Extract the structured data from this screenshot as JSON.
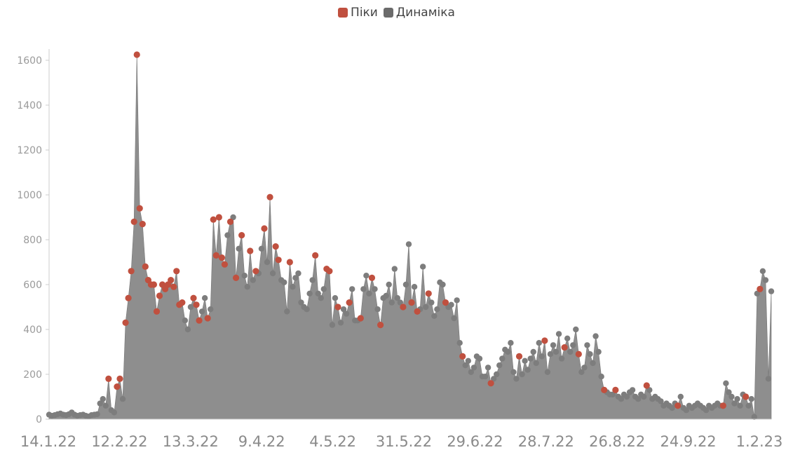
{
  "legend": {
    "peaks_label": "Піки",
    "dynamics_label": "Динаміка"
  },
  "colors": {
    "area": "#8e8e8e",
    "dot": "#7d7d7d",
    "peak": "#c0503f",
    "axis": "#cccccc"
  },
  "chart_data": {
    "type": "area",
    "title": "",
    "xlabel": "",
    "ylabel": "",
    "ylim": [
      0,
      1650
    ],
    "y_ticks": [
      0,
      200,
      400,
      600,
      800,
      1000,
      1200,
      1400,
      1600
    ],
    "x_tick_labels": [
      "14.1.22",
      "12.2.22",
      "13.3.22",
      "9.4.22",
      "4.5.22",
      "31.5.22",
      "29.6.22",
      "28.7.22",
      "26.8.22",
      "24.9.22",
      "1.2.23"
    ],
    "legend_position": "top-center",
    "grid": false,
    "series": [
      {
        "name": "Динаміка",
        "values": [
          20,
          15,
          18,
          22,
          25,
          20,
          18,
          22,
          30,
          20,
          15,
          18,
          20,
          15,
          12,
          18,
          20,
          22,
          70,
          90,
          60,
          180,
          40,
          30,
          145,
          180,
          90,
          430,
          540,
          660,
          880,
          1625,
          940,
          870,
          680,
          620,
          600,
          600,
          480,
          550,
          600,
          580,
          600,
          620,
          590,
          660,
          510,
          520,
          440,
          400,
          500,
          540,
          510,
          440,
          480,
          540,
          450,
          490,
          890,
          730,
          900,
          720,
          690,
          820,
          880,
          900,
          630,
          760,
          820,
          640,
          590,
          750,
          620,
          660,
          650,
          760,
          850,
          700,
          990,
          650,
          770,
          710,
          620,
          610,
          480,
          700,
          590,
          630,
          650,
          520,
          500,
          490,
          560,
          620,
          730,
          560,
          540,
          580,
          670,
          660,
          420,
          540,
          500,
          430,
          490,
          470,
          520,
          580,
          440,
          440,
          450,
          580,
          640,
          560,
          630,
          580,
          490,
          420,
          540,
          550,
          600,
          520,
          670,
          540,
          520,
          500,
          600,
          780,
          520,
          590,
          480,
          490,
          680,
          500,
          560,
          520,
          460,
          490,
          610,
          600,
          520,
          500,
          510,
          450,
          530,
          340,
          280,
          240,
          260,
          210,
          230,
          280,
          270,
          190,
          190,
          230,
          160,
          180,
          200,
          240,
          270,
          310,
          300,
          340,
          210,
          180,
          280,
          200,
          260,
          220,
          270,
          300,
          250,
          340,
          280,
          350,
          210,
          290,
          330,
          300,
          380,
          270,
          320,
          360,
          300,
          330,
          400,
          290,
          210,
          230,
          330,
          290,
          250,
          370,
          300,
          190,
          130,
          120,
          110,
          110,
          130,
          100,
          90,
          110,
          100,
          120,
          130,
          100,
          90,
          110,
          100,
          150,
          130,
          90,
          100,
          90,
          80,
          60,
          70,
          60,
          50,
          70,
          60,
          100,
          50,
          40,
          60,
          50,
          60,
          70,
          60,
          50,
          40,
          60,
          50,
          60,
          70,
          60,
          60,
          160,
          120,
          100,
          70,
          90,
          60,
          110,
          100,
          60,
          90,
          10,
          560,
          580,
          660,
          620,
          180,
          570
        ]
      },
      {
        "name": "Піки",
        "peak_indices": [
          21,
          24,
          25,
          27,
          28,
          29,
          30,
          31,
          32,
          33,
          34,
          35,
          36,
          37,
          38,
          39,
          40,
          41,
          42,
          43,
          44,
          45,
          46,
          47,
          51,
          52,
          53,
          56,
          58,
          59,
          60,
          61,
          62,
          64,
          66,
          68,
          71,
          73,
          76,
          78,
          80,
          81,
          85,
          94,
          98,
          99,
          102,
          106,
          110,
          114,
          117,
          125,
          128,
          130,
          134,
          140,
          146,
          156,
          166,
          175,
          182,
          187,
          196,
          200,
          211,
          222,
          238,
          246,
          251,
          256
        ]
      }
    ]
  }
}
